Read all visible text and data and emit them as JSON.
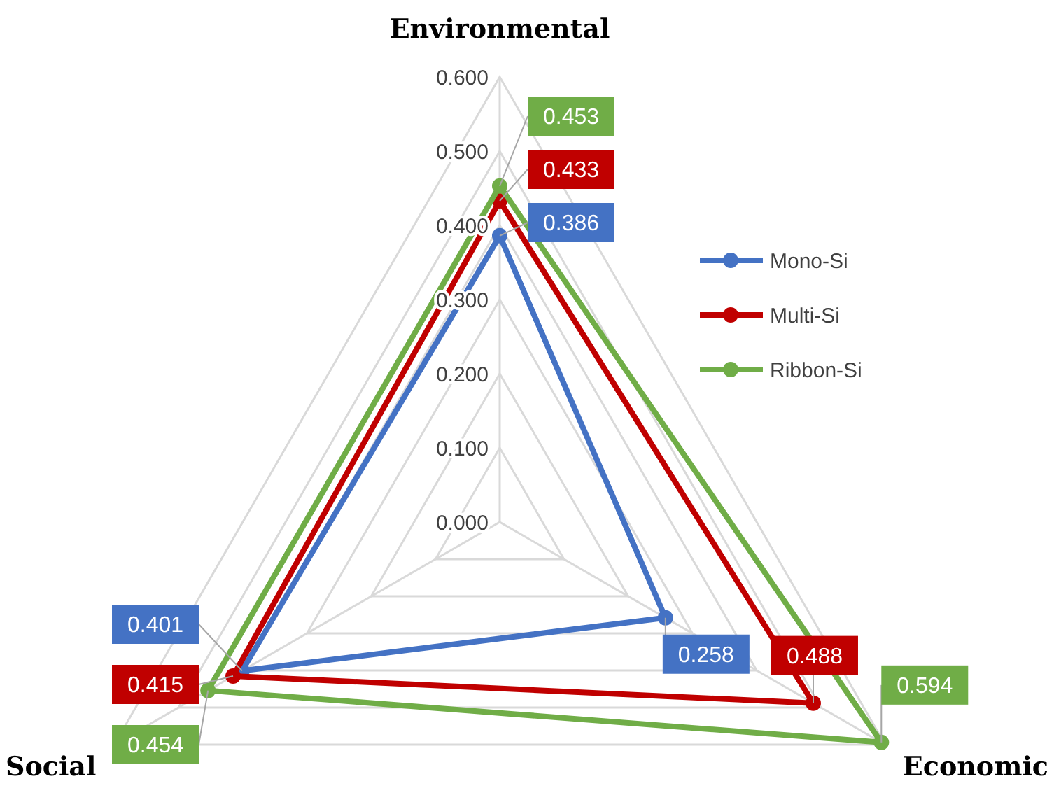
{
  "chart_data": {
    "type": "radar",
    "categories": [
      "Environmental",
      "Economic",
      "Social"
    ],
    "ylim": [
      0,
      0.6
    ],
    "yticks": [
      {
        "value": 0,
        "label": "0.000"
      },
      {
        "value": 0.1,
        "label": "0.100"
      },
      {
        "value": 0.2,
        "label": "0.200"
      },
      {
        "value": 0.3,
        "label": "0.300"
      },
      {
        "value": 0.4,
        "label": "0.400"
      },
      {
        "value": 0.5,
        "label": "0.500"
      },
      {
        "value": 0.6,
        "label": "0.600"
      }
    ],
    "series": [
      {
        "name": "Mono-Si",
        "color": "#4472c4",
        "values": [
          0.386,
          0.258,
          0.401
        ]
      },
      {
        "name": "Multi-Si",
        "color": "#c00000",
        "values": [
          0.433,
          0.488,
          0.415
        ]
      },
      {
        "name": "Ribbon-Si",
        "color": "#70ad47",
        "values": [
          0.453,
          0.594,
          0.454
        ]
      }
    ],
    "data_labels": true,
    "legend": "right",
    "marker": "circle",
    "grid": true
  }
}
